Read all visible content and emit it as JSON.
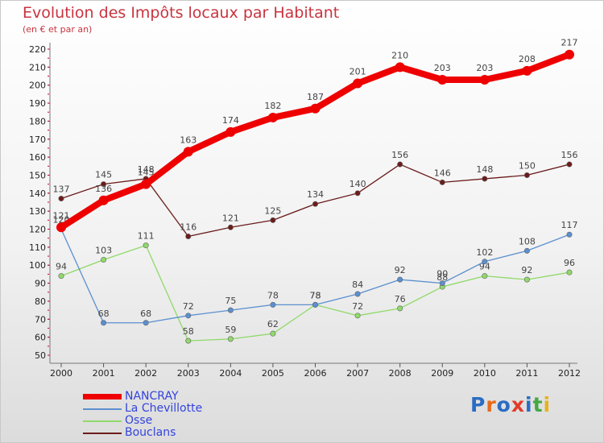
{
  "header": {
    "title": "Evolution des Impôts locaux par Habitant",
    "subtitle": "(en € et par an)"
  },
  "logo": {
    "text": "Proxiti",
    "colors": [
      "#2b6cc4",
      "#e86a1a",
      "#2b6cc4",
      "#e23b2a",
      "#2b6cc4",
      "#45a843",
      "#e8b21a"
    ]
  },
  "chart_data": {
    "type": "line",
    "title": "Evolution des Impôts locaux par Habitant",
    "subtitle": "(en € et par an)",
    "x": [
      "2000",
      "2001",
      "2002",
      "2003",
      "2004",
      "2005",
      "2006",
      "2007",
      "2008",
      "2009",
      "2010",
      "2011",
      "2012"
    ],
    "ylim": [
      50,
      220
    ],
    "yticks": [
      50,
      60,
      70,
      80,
      90,
      100,
      110,
      120,
      130,
      140,
      150,
      160,
      170,
      180,
      190,
      200,
      210,
      220
    ],
    "grid": false,
    "legend_position": "bottom-left",
    "series": [
      {
        "name": "Bouclans",
        "color": "#6b1c1c",
        "values": [
          137,
          145,
          148,
          116,
          121,
          125,
          134,
          140,
          156,
          146,
          148,
          150,
          156
        ]
      },
      {
        "name": "Osse",
        "color": "#90d96a",
        "values": [
          94,
          103,
          111,
          58,
          59,
          62,
          78,
          72,
          76,
          88,
          94,
          92,
          96
        ]
      },
      {
        "name": "La Chevillotte",
        "color": "#5b8fd0",
        "values": [
          120,
          68,
          68,
          72,
          75,
          78,
          78,
          84,
          92,
          90,
          102,
          108,
          117
        ]
      },
      {
        "name": "NANCRAY",
        "color": "#ee0000",
        "values": [
          121,
          136,
          145,
          163,
          174,
          182,
          187,
          201,
          210,
          203,
          203,
          208,
          217
        ]
      }
    ]
  },
  "legend": {
    "items": [
      {
        "name": "NANCRAY",
        "color": "#ee0000"
      },
      {
        "name": "La Chevillotte",
        "color": "#5b8fd0"
      },
      {
        "name": "Osse",
        "color": "#90d96a"
      },
      {
        "name": "Bouclans",
        "color": "#6b1c1c"
      }
    ]
  }
}
